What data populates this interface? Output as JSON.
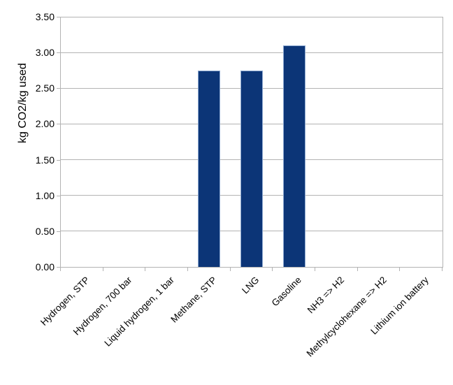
{
  "chart_data": {
    "type": "bar",
    "title": "",
    "ylabel": "kg CO2/kg used",
    "xlabel": "",
    "categories": [
      "Hydrogen, STP",
      "Hydrogen, 700 bar",
      "Liquid hydrogen, 1 bar",
      "Methane, STP",
      "LNG",
      "Gasoline",
      "NH3 => H2",
      "Methylcyclohexane => H2",
      "Lithium ion battery"
    ],
    "values": [
      0,
      0,
      0,
      2.75,
      2.75,
      3.1,
      0,
      0,
      0
    ],
    "ylim": [
      0.0,
      3.5
    ],
    "ytick_step": 0.5,
    "ytick_labels": [
      "0.00",
      "0.50",
      "1.00",
      "1.50",
      "2.00",
      "2.50",
      "3.00",
      "3.50"
    ],
    "grid": "horizontal",
    "legend": "none",
    "colors": {
      "bar_fill": "#0c3577",
      "bar_border": "#8ca8d0",
      "axis": "#b3b3b3",
      "gridline": "#b3b3b3",
      "text": "#000000",
      "background": "#ffffff"
    }
  }
}
